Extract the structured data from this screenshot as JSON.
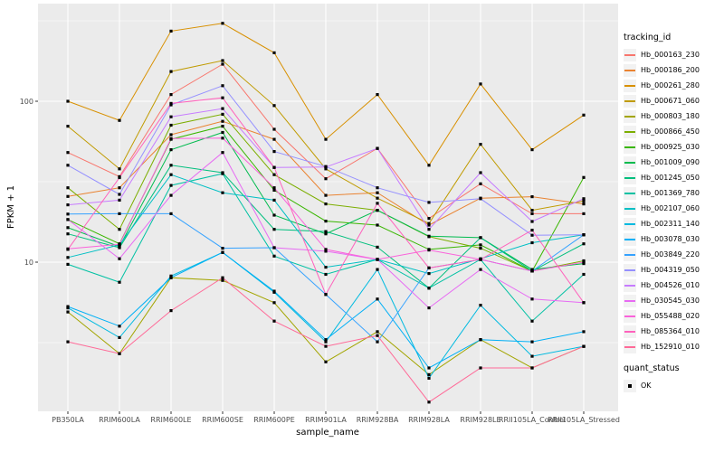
{
  "figure": {
    "background": "#FFFFFF",
    "panel_background": "#EBEBEB",
    "grid_color": "#FFFFFF",
    "axis_text_color": "#4D4D4D",
    "tick_color": "#333333",
    "marker_color": "#000000",
    "legend_key_background": "#F2F2F2"
  },
  "legend": {
    "tracking_title": "tracking_id",
    "quant_title": "quant_status",
    "quant_items": [
      {
        "label": "OK",
        "shape": "square",
        "color": "#000000"
      }
    ]
  },
  "chart_data": {
    "type": "line",
    "title": "",
    "xlabel": "sample_name",
    "ylabel": "FPKM + 1",
    "y_scale": "log10",
    "ylim": [
      1.2,
      400
    ],
    "y_ticks": [
      {
        "label": "100",
        "value": 100
      },
      {
        "label": "10",
        "value": 10
      }
    ],
    "y_major_gridlines": [
      10,
      100
    ],
    "y_minor_gridlines": [
      3.162,
      31.62,
      316.2
    ],
    "marker": "black-square",
    "legend_position": "right",
    "x_categories": [
      "PB350LA",
      "RRIM600LA",
      "RRIM600LE",
      "RRIM600SE",
      "RRIM600PE",
      "RRIM901LA",
      "RRIM928BA",
      "RRIM928LA",
      "RRIM928LE",
      "RRII105LA_Control",
      "RRII105LA_Stressed"
    ],
    "series": [
      {
        "name": "Hb_000163_230",
        "color": "#F8766D",
        "values": [
          48,
          34,
          110,
          170,
          67,
          33,
          51,
          18.7,
          30.7,
          20,
          20
        ]
      },
      {
        "name": "Hb_000186_200",
        "color": "#EA8331",
        "values": [
          25.6,
          29,
          62,
          75,
          58,
          26,
          27,
          17,
          25,
          25.5,
          23
        ]
      },
      {
        "name": "Hb_000261_280",
        "color": "#D89000",
        "values": [
          100,
          76,
          273,
          305,
          200,
          58,
          110,
          40,
          128,
          50,
          82
        ]
      },
      {
        "name": "Hb_000671_060",
        "color": "#C09B00",
        "values": [
          70,
          38,
          153,
          179,
          94,
          38,
          25,
          17.4,
          54,
          21,
          24
        ]
      },
      {
        "name": "Hb_000803_180",
        "color": "#A3A500",
        "values": [
          4.9,
          2.7,
          8,
          7.7,
          5.6,
          2.4,
          3.7,
          2,
          3.3,
          2.2,
          3
        ]
      },
      {
        "name": "Hb_000866_450",
        "color": "#7CAE00",
        "values": [
          29,
          16,
          71,
          83,
          35,
          23,
          21,
          14.4,
          12.2,
          8.8,
          10.2
        ]
      },
      {
        "name": "Hb_000925_030",
        "color": "#39B600",
        "values": [
          18.4,
          13,
          58,
          70,
          28,
          18,
          17,
          12,
          12.8,
          8.8,
          33.6
        ]
      },
      {
        "name": "Hb_001009_090",
        "color": "#00BB4E",
        "values": [
          16.4,
          12.5,
          50,
          64,
          19.6,
          15,
          21,
          14.5,
          14.2,
          9,
          9.8
        ]
      },
      {
        "name": "Hb_001245_050",
        "color": "#00BF7D",
        "values": [
          15,
          12.3,
          40,
          36,
          16,
          15.5,
          12.4,
          6.9,
          14.2,
          8.8,
          13
        ]
      },
      {
        "name": "Hb_001369_780",
        "color": "#00C1A3",
        "values": [
          9.7,
          7.5,
          30,
          35.5,
          10.9,
          8.4,
          10.4,
          6.9,
          10.4,
          4.3,
          8.4
        ]
      },
      {
        "name": "Hb_002107_060",
        "color": "#00BFC4",
        "values": [
          10.7,
          12.8,
          35,
          27,
          24.3,
          9.3,
          10.4,
          8.5,
          10.5,
          13.2,
          14.8
        ]
      },
      {
        "name": "Hb_002311_140",
        "color": "#00BAE0",
        "values": [
          5.2,
          3.4,
          8.2,
          11.5,
          6.5,
          3.2,
          9,
          1.9,
          5.4,
          2.6,
          3
        ]
      },
      {
        "name": "Hb_003078_030",
        "color": "#00B0F6",
        "values": [
          5.3,
          4,
          8,
          11.5,
          6.6,
          3.3,
          5.9,
          2.2,
          3.3,
          3.2,
          3.7
        ]
      },
      {
        "name": "Hb_003849_220",
        "color": "#35A2FF",
        "values": [
          19.9,
          20,
          20,
          12.2,
          12.3,
          6.3,
          3.2,
          9.2,
          10.4,
          8.8,
          14.8
        ]
      },
      {
        "name": "Hb_004319_050",
        "color": "#9590FF",
        "values": [
          40,
          26.4,
          95,
          125,
          48.7,
          39.3,
          29,
          23.5,
          24.8,
          14.7,
          14.8
        ]
      },
      {
        "name": "Hb_004526_010",
        "color": "#C77CFF",
        "values": [
          22.7,
          24.3,
          80,
          90,
          38.8,
          39,
          50.9,
          16,
          36,
          17.9,
          24.8
        ]
      },
      {
        "name": "Hb_030545_030",
        "color": "#E76BF3",
        "values": [
          18.4,
          10.5,
          26,
          48,
          12.3,
          11.7,
          10.4,
          5.2,
          9,
          5.9,
          5.6
        ]
      },
      {
        "name": "Hb_055488_020",
        "color": "#FA62DB",
        "values": [
          12.1,
          12.9,
          58.6,
          59,
          29,
          12,
          10.4,
          11.9,
          10.4,
          8.8,
          10
        ]
      },
      {
        "name": "Hb_085364_010",
        "color": "#FF62BC",
        "values": [
          12,
          33.5,
          97,
          105,
          38.8,
          6.3,
          23.2,
          9.2,
          10.4,
          15.8,
          5.6
        ]
      },
      {
        "name": "Hb_152910_010",
        "color": "#FF6A98",
        "values": [
          3.2,
          2.7,
          5,
          8,
          4.3,
          3,
          3.5,
          1.35,
          2.2,
          2.2,
          3
        ]
      }
    ]
  }
}
